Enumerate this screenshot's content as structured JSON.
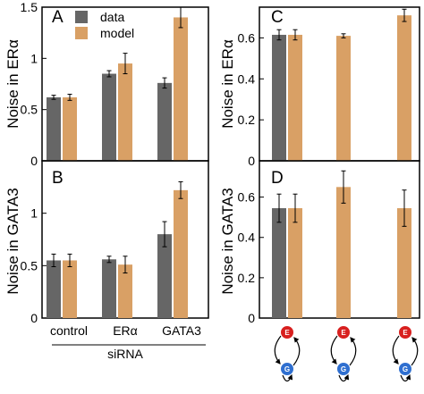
{
  "colors": {
    "data": "#666666",
    "model": "#D9A065",
    "err": "#000000",
    "nodeE": "#D8201F",
    "nodeG": "#2F6FD0"
  },
  "legend": {
    "data": "data",
    "model": "model"
  },
  "xlabel": "siRNA",
  "node_labels": {
    "e": "E",
    "g": "G"
  },
  "chart_data": [
    {
      "panel": "A",
      "type": "bar",
      "ylabel_main": "Noise in ER",
      "ylabel_greek": "α",
      "ylim": [
        0,
        1.5
      ],
      "ticks": [
        "0",
        "0.5",
        "1",
        "1.5"
      ],
      "tick_values": [
        0,
        0.5,
        1,
        1.5
      ],
      "categories": [
        {
          "pre": "control",
          "greek": ""
        },
        {
          "pre": "ER",
          "greek": "α"
        },
        {
          "pre": "GATA3",
          "greek": ""
        }
      ],
      "series": [
        {
          "name": "data",
          "values": [
            0.62,
            0.85,
            0.76
          ],
          "errors": [
            0.02,
            0.03,
            0.05
          ]
        },
        {
          "name": "model",
          "values": [
            0.62,
            0.95,
            1.4
          ],
          "errors": [
            0.03,
            0.1,
            0.1
          ]
        }
      ]
    },
    {
      "panel": "B",
      "type": "bar",
      "ylabel_main": "Noise in GATA3",
      "ylabel_greek": "",
      "ylim": [
        0,
        1.5
      ],
      "ticks": [
        "0",
        "0.5",
        "1"
      ],
      "tick_values": [
        0,
        0.5,
        1
      ],
      "categories": [
        {
          "pre": "control",
          "greek": ""
        },
        {
          "pre": "ER",
          "greek": "α"
        },
        {
          "pre": "GATA3",
          "greek": ""
        }
      ],
      "series": [
        {
          "name": "data",
          "values": [
            0.55,
            0.56,
            0.8
          ],
          "errors": [
            0.06,
            0.03,
            0.12
          ]
        },
        {
          "name": "model",
          "values": [
            0.55,
            0.51,
            1.22
          ],
          "errors": [
            0.06,
            0.08,
            0.08
          ]
        }
      ]
    },
    {
      "panel": "C",
      "type": "bar",
      "ylabel_main": "Noise in ER",
      "ylabel_greek": "α",
      "ylim": [
        0,
        0.75
      ],
      "ticks": [
        "0",
        "0.2",
        "0.4",
        "0.6"
      ],
      "tick_values": [
        0,
        0.2,
        0.4,
        0.6
      ],
      "groups": [
        {
          "data": 0.615,
          "data_err": 0.025,
          "model": 0.615,
          "model_err": 0.025
        },
        {
          "data": null,
          "data_err": null,
          "model": 0.61,
          "model_err": 0.01
        },
        {
          "data": null,
          "data_err": null,
          "model": 0.71,
          "model_err": 0.03
        }
      ]
    },
    {
      "panel": "D",
      "type": "bar",
      "ylabel_main": "Noise in GATA3",
      "ylabel_greek": "",
      "ylim": [
        0,
        0.78
      ],
      "ticks": [
        "0",
        "0.2",
        "0.4",
        "0.6"
      ],
      "tick_values": [
        0,
        0.2,
        0.4,
        0.6
      ],
      "groups": [
        {
          "data": 0.545,
          "data_err": 0.07,
          "model": 0.545,
          "model_err": 0.07
        },
        {
          "data": null,
          "data_err": null,
          "model": 0.65,
          "model_err": 0.08
        },
        {
          "data": null,
          "data_err": null,
          "model": 0.545,
          "model_err": 0.09
        }
      ]
    }
  ]
}
